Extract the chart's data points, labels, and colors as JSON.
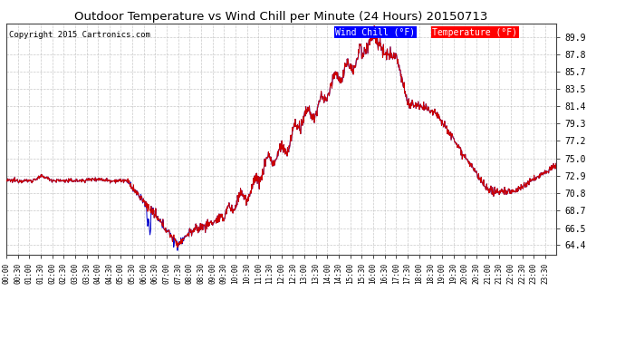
{
  "title": "Outdoor Temperature vs Wind Chill per Minute (24 Hours) 20150713",
  "copyright": "Copyright 2015 Cartronics.com",
  "legend_wind_chill": "Wind Chill (°F)",
  "legend_temperature": "Temperature (°F)",
  "yticks": [
    64.4,
    66.5,
    68.7,
    70.8,
    72.9,
    75.0,
    77.2,
    79.3,
    81.4,
    83.5,
    85.7,
    87.8,
    89.9
  ],
  "ylim": [
    63.2,
    91.5
  ],
  "background_color": "#ffffff",
  "grid_color": "#bbbbbb",
  "temp_color": "#cc0000",
  "wind_color": "#0000cc",
  "title_color": "#000000",
  "copyright_color": "#000000",
  "n_minutes": 1440,
  "xtick_step": 30
}
